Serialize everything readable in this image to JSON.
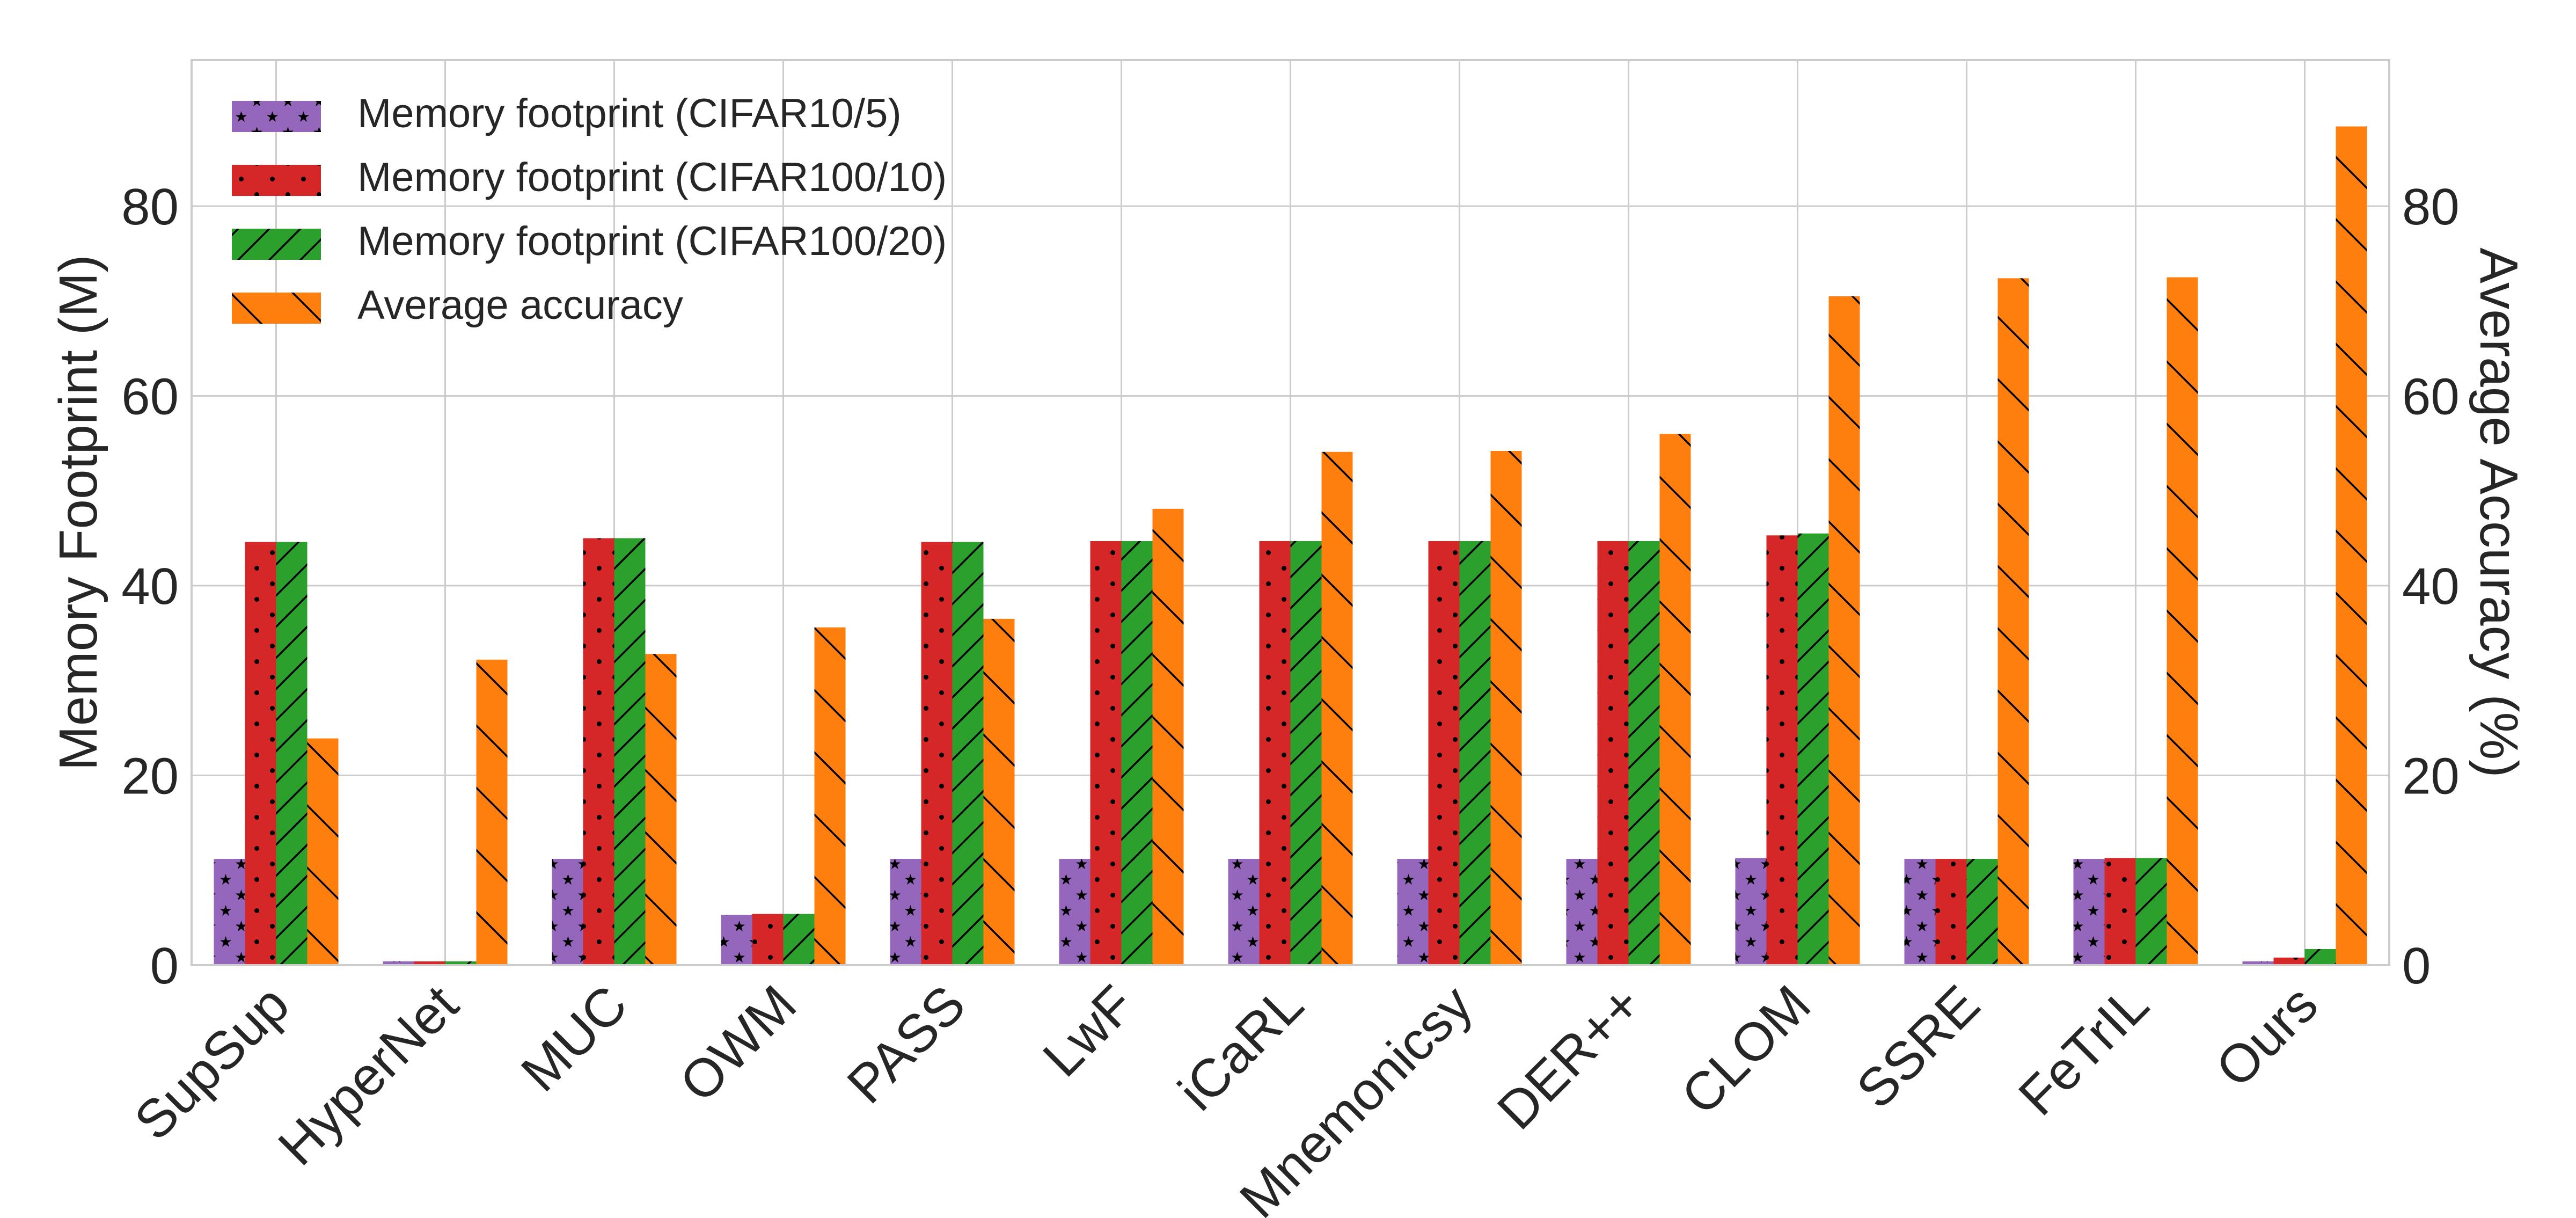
{
  "chart_data": {
    "type": "bar",
    "ylabel": "Memory Footprint (M)",
    "y2label": "Average Accuracy (%)",
    "ylim": [
      0,
      95
    ],
    "y2lim": [
      0,
      95
    ],
    "yticks": [
      0,
      20,
      40,
      60,
      80
    ],
    "y2ticks": [
      0,
      20,
      40,
      60,
      80
    ],
    "grid": true,
    "legend_position": "top-left",
    "categories": [
      "SupSup",
      "HyperNet",
      "MUC",
      "OWM",
      "PASS",
      "LwF",
      "iCaRL",
      "Mnemonicsy",
      "DER++",
      "CLOM",
      "SSRE",
      "FeTrIL",
      "Ours"
    ],
    "series": [
      {
        "name": "Memory footprint (CIFAR10/5)",
        "axis": "left",
        "color": "#9467bd",
        "hatch": "stars",
        "values": [
          11.2,
          0.4,
          11.2,
          5.3,
          11.2,
          11.2,
          11.2,
          11.2,
          11.2,
          11.3,
          11.2,
          11.2,
          0.4
        ]
      },
      {
        "name": "Memory footprint (CIFAR100/10)",
        "axis": "left",
        "color": "#d62728",
        "hatch": "dots",
        "values": [
          44.6,
          0.4,
          45.0,
          5.4,
          44.6,
          44.7,
          44.7,
          44.7,
          44.7,
          45.3,
          11.2,
          11.3,
          0.8
        ]
      },
      {
        "name": "Memory footprint (CIFAR100/20)",
        "axis": "left",
        "color": "#2ca02c",
        "hatch": "slash",
        "values": [
          44.6,
          0.4,
          45.0,
          5.4,
          44.6,
          44.7,
          44.7,
          44.7,
          44.7,
          45.5,
          11.2,
          11.3,
          1.7
        ]
      },
      {
        "name": "Average accuracy",
        "axis": "right",
        "color": "#ff7f0e",
        "hatch": "backslash",
        "values": [
          23.9,
          32.2,
          32.8,
          35.6,
          36.5,
          48.1,
          54.1,
          54.2,
          56.0,
          70.5,
          72.4,
          72.5,
          88.4
        ]
      }
    ]
  }
}
